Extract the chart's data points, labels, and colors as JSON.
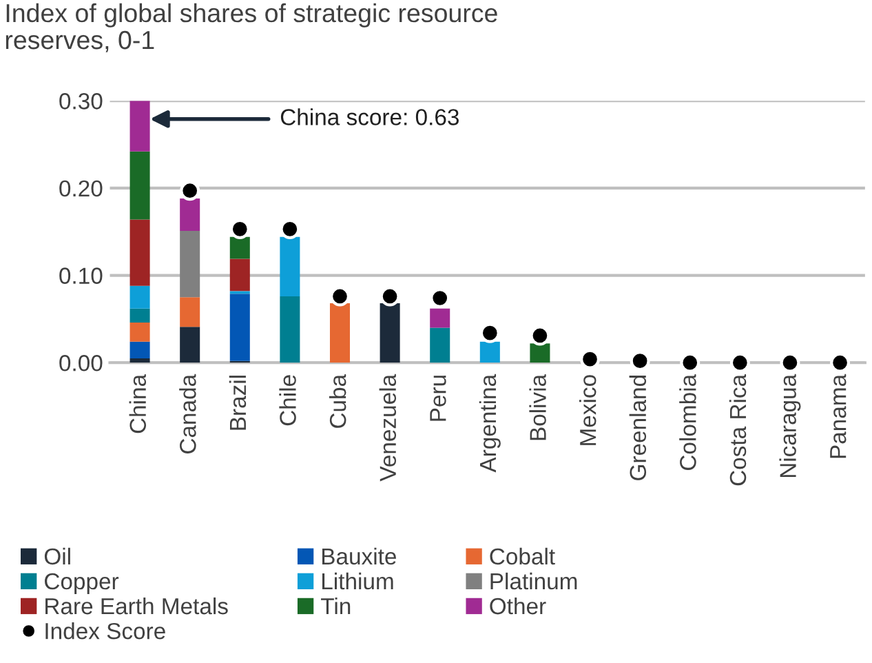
{
  "chart_data": {
    "type": "bar",
    "stacked": true,
    "title": "Index of global shares of strategic resource\nreserves, 0-1",
    "categories": [
      "China",
      "Canada",
      "Brazil",
      "Chile",
      "Cuba",
      "Venezuela",
      "Peru",
      "Argentina",
      "Bolivia",
      "Mexico",
      "Greenland",
      "Colombia",
      "Costa Rica",
      "Nicaragua",
      "Panama"
    ],
    "series": [
      {
        "name": "Oil",
        "color": "#1c2a3a",
        "values": [
          0.005,
          0.041,
          0.002,
          0,
          0,
          0.068,
          0,
          0,
          0,
          0,
          0,
          0,
          0,
          0,
          0
        ]
      },
      {
        "name": "Bauxite",
        "color": "#0357b5",
        "values": [
          0.019,
          0,
          0.077,
          0,
          0,
          0,
          0,
          0,
          0,
          0,
          0,
          0,
          0,
          0,
          0
        ]
      },
      {
        "name": "Cobalt",
        "color": "#e66832",
        "values": [
          0.022,
          0.034,
          0,
          0,
          0.068,
          0,
          0,
          0,
          0,
          0,
          0,
          0,
          0,
          0,
          0
        ]
      },
      {
        "name": "Copper",
        "color": "#007f91",
        "values": [
          0.016,
          0,
          0,
          0.076,
          0,
          0,
          0.04,
          0,
          0,
          0,
          0,
          0,
          0,
          0,
          0
        ]
      },
      {
        "name": "Lithium",
        "color": "#0e9fd8",
        "values": [
          0.026,
          0,
          0.003,
          0.068,
          0,
          0,
          0,
          0.024,
          0,
          0,
          0,
          0,
          0,
          0,
          0
        ]
      },
      {
        "name": "Platinum",
        "color": "#808080",
        "values": [
          0,
          0.076,
          0,
          0,
          0,
          0,
          0,
          0,
          0,
          0,
          0,
          0,
          0,
          0,
          0
        ]
      },
      {
        "name": "Rare Earth Metals",
        "color": "#9e2424",
        "values": [
          0.076,
          0,
          0.037,
          0,
          0,
          0,
          0,
          0,
          0,
          0,
          0,
          0,
          0,
          0,
          0
        ]
      },
      {
        "name": "Tin",
        "color": "#1a6b27",
        "values": [
          0.078,
          0,
          0.025,
          0,
          0,
          0,
          0,
          0,
          0.022,
          0,
          0,
          0,
          0,
          0,
          0
        ]
      },
      {
        "name": "Other",
        "color": "#a02b93",
        "values": [
          0.058,
          0.037,
          0,
          0,
          0,
          0,
          0.022,
          0,
          0,
          0,
          0,
          0,
          0,
          0,
          0
        ]
      },
      {
        "name": "Index Score",
        "type": "scatter",
        "color": "#000000",
        "values": [
          null,
          0.197,
          0.153,
          0.153,
          0.076,
          0.076,
          0.074,
          0.034,
          0.031,
          0.004,
          0.002,
          0,
          0,
          0,
          0
        ]
      }
    ],
    "ylim": [
      0,
      0.3
    ],
    "yticks": [
      {
        "value": 0,
        "label": "0.00"
      },
      {
        "value": 0.1,
        "label": "0.10"
      },
      {
        "value": 0.2,
        "label": "0.20"
      },
      {
        "value": 0.3,
        "label": "0.30"
      }
    ],
    "grid": "y",
    "legend": "bottom",
    "marker": "circle",
    "annotations": [
      "China score: 0.63"
    ]
  }
}
